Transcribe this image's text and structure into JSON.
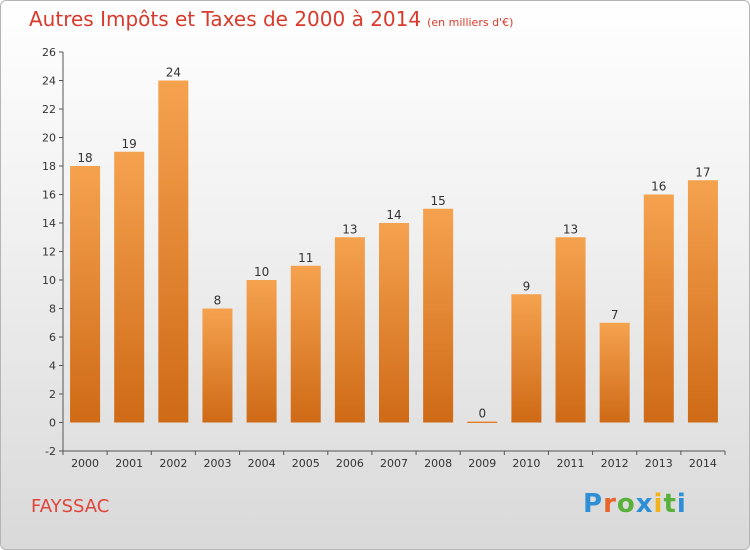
{
  "header": {
    "title": "Autres Impôts et Taxes de 2000 à 2014",
    "subtitle": "(en milliers d'€)"
  },
  "commune": "FAYSSAC",
  "logo": {
    "text": "Proxiti",
    "letter_colors": [
      "#2f8fd6",
      "#e8642b",
      "#58b13b",
      "#2f8fd6",
      "#f2b21c",
      "#58b13b",
      "#2f8fd6"
    ]
  },
  "chart_data": {
    "type": "bar",
    "title": "Autres Impôts et Taxes de 2000 à 2014",
    "subtitle": "(en milliers d'€)",
    "categories": [
      "2000",
      "2001",
      "2002",
      "2003",
      "2004",
      "2005",
      "2006",
      "2007",
      "2008",
      "2009",
      "2010",
      "2011",
      "2012",
      "2013",
      "2014"
    ],
    "values": [
      18,
      19,
      24,
      8,
      10,
      11,
      13,
      14,
      15,
      0,
      9,
      13,
      7,
      16,
      17
    ],
    "data_labels": [
      "18",
      "19",
      "24",
      "8",
      "10",
      "11",
      "13",
      "14",
      "15",
      "0",
      "9",
      "13",
      "7",
      "16",
      "17"
    ],
    "ylim": [
      -2,
      26
    ],
    "yticks": [
      -2,
      0,
      2,
      4,
      6,
      8,
      10,
      12,
      14,
      16,
      18,
      20,
      22,
      24,
      26
    ],
    "xlabel": "",
    "ylabel": "",
    "grid": false,
    "legend": "none",
    "bar_color_top": "#f5a24f",
    "bar_color_bottom": "#cf6a16"
  }
}
